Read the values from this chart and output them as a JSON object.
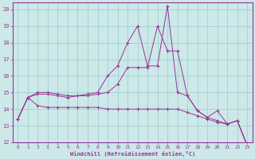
{
  "bg_color": "#cce8e8",
  "grid_color": "#99cccc",
  "line_color": "#993399",
  "marker_color": "#993399",
  "xlabel": "Windchill (Refroidissement éolien,°C)",
  "xlabel_color": "#993399",
  "tick_color": "#993399",
  "ylim": [
    12,
    20.4
  ],
  "xlim": [
    -0.5,
    23.5
  ],
  "yticks": [
    12,
    13,
    14,
    15,
    16,
    17,
    18,
    19,
    20
  ],
  "xticks": [
    0,
    1,
    2,
    3,
    4,
    5,
    6,
    7,
    8,
    9,
    10,
    11,
    12,
    13,
    14,
    15,
    16,
    17,
    18,
    19,
    20,
    21,
    22,
    23
  ],
  "series": [
    [
      13.4,
      14.7,
      14.2,
      14.1,
      14.1,
      14.1,
      14.1,
      14.1,
      14.1,
      14.0,
      14.0,
      14.0,
      14.0,
      14.0,
      14.0,
      14.0,
      14.0,
      13.8,
      13.6,
      13.4,
      13.2,
      13.1,
      13.3,
      11.8
    ],
    [
      13.4,
      14.7,
      14.9,
      14.9,
      14.8,
      14.7,
      14.8,
      14.8,
      14.9,
      15.0,
      15.5,
      16.5,
      16.5,
      16.5,
      19.0,
      17.5,
      17.5,
      14.8,
      13.9,
      13.5,
      13.3,
      13.1,
      13.3,
      11.8
    ],
    [
      13.4,
      14.7,
      15.0,
      15.0,
      14.9,
      14.8,
      14.8,
      14.9,
      15.0,
      16.0,
      16.6,
      18.0,
      19.0,
      16.6,
      16.6,
      20.2,
      15.0,
      14.8,
      13.9,
      13.5,
      13.9,
      13.1,
      13.3,
      11.8
    ]
  ]
}
